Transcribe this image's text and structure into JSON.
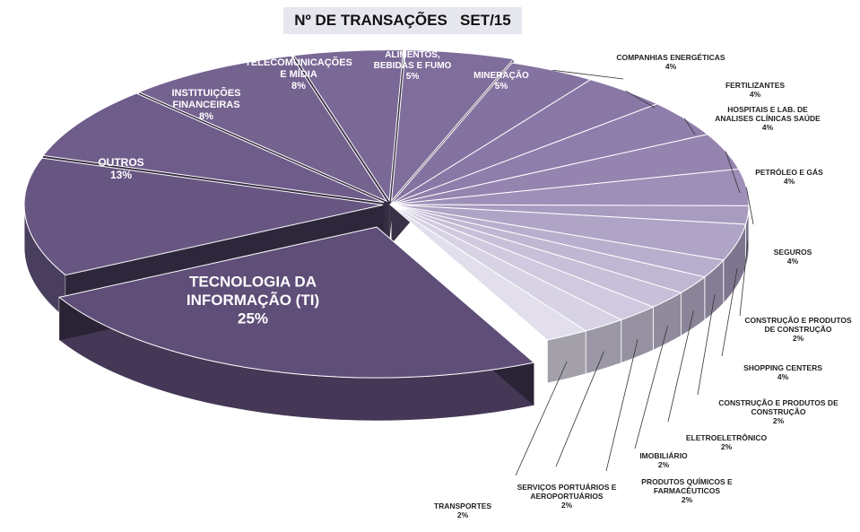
{
  "chart_data": {
    "type": "pie",
    "title": "Nº DE TRANSAÇÕES   SET/15",
    "slices": [
      {
        "label": "TECNOLOGIA DA INFORMAÇÃO (TI)",
        "lines": [
          "TECNOLOGIA DA",
          "INFORMAÇÃO (TI)"
        ],
        "value": 25,
        "pct": "25%",
        "color": "#5e4e78"
      },
      {
        "label": "OUTROS",
        "lines": [
          "OUTROS"
        ],
        "value": 13,
        "pct": "13%",
        "color": "#675682"
      },
      {
        "label": "INSTITUIÇÕES FINANCEIRAS",
        "lines": [
          "INSTITUIÇÕES",
          "FINANCEIRAS"
        ],
        "value": 8,
        "pct": "8%",
        "color": "#6e5c8a"
      },
      {
        "label": "TELECOMUNICAÇÕES E MÍDIA",
        "lines": [
          "TELECOMUNICAÇÕES",
          "E MÍDIA"
        ],
        "value": 8,
        "pct": "8%",
        "color": "#74628f"
      },
      {
        "label": "ALIMENTOS, BEBIDAS E FUMO",
        "lines": [
          "ALIMENTOS,",
          "BEBIDAS E FUMO"
        ],
        "value": 5,
        "pct": "5%",
        "color": "#7a6896"
      },
      {
        "label": "MINERAÇÃO",
        "lines": [
          "MINERAÇÃO"
        ],
        "value": 5,
        "pct": "5%",
        "color": "#7f6d9b"
      },
      {
        "label": "COMPANHIAS ENERGÉTICAS",
        "lines": [
          "COMPANHIAS ENERGÉTICAS"
        ],
        "value": 4,
        "pct": "4%",
        "color": "#8473a0"
      },
      {
        "label": "FERTILIZANTES",
        "lines": [
          "FERTILIZANTES"
        ],
        "value": 4,
        "pct": "4%",
        "color": "#8978a6"
      },
      {
        "label": "HOSPITAIS E LAB. DE ANALISES CLÍNICAS SAÚDE",
        "lines": [
          "HOSPITAIS E LAB. DE",
          "ANALISES CLÍNICAS SAÚDE"
        ],
        "value": 4,
        "pct": "4%",
        "color": "#8e7eab"
      },
      {
        "label": "PETRÓLEO E GÁS",
        "lines": [
          "PETRÓLEO E GÁS"
        ],
        "value": 4,
        "pct": "4%",
        "color": "#9584b0"
      },
      {
        "label": "SEGUROS",
        "lines": [
          "SEGUROS"
        ],
        "value": 4,
        "pct": "4%",
        "color": "#9d8fb8"
      },
      {
        "label": "CONSTRUÇÃO E PRODUTOS DE CONSTRUÇÃO",
        "lines": [
          "CONSTRUÇÃO E PRODUTOS",
          "DE CONSTRUÇÃO"
        ],
        "value": 2,
        "pct": "2%",
        "color": "#a79bbf"
      },
      {
        "label": "SHOPPING CENTERS",
        "lines": [
          "SHOPPING CENTERS"
        ],
        "value": 4,
        "pct": "4%",
        "color": "#afa4c6"
      },
      {
        "label": "CONSTRUÇÃO E PRODUTOS DE CONSTRUÇÃO",
        "lines": [
          "CONSTRUÇÃO E PRODUTOS DE",
          "CONSTRUÇÃO"
        ],
        "value": 2,
        "pct": "2%",
        "color": "#b8aecd"
      },
      {
        "label": "ELETROELETRÔNICO",
        "lines": [
          "ELETROELETRÔNICO"
        ],
        "value": 2,
        "pct": "2%",
        "color": "#c0b7d3"
      },
      {
        "label": "IMOBILIÁRIO",
        "lines": [
          "IMOBILIÁRIO"
        ],
        "value": 2,
        "pct": "2%",
        "color": "#c8c0d9"
      },
      {
        "label": "PRODUTOS QUÍMICOS E FARMACÊUTICOS",
        "lines": [
          "PRODUTOS QUÍMICOS E",
          "FARMACÊUTICOS"
        ],
        "value": 2,
        "pct": "2%",
        "color": "#d0c9df"
      },
      {
        "label": "SERVIÇOS PORTUÁRIOS E AEROPORTUÁRIOS",
        "lines": [
          "SERVIÇOS PORTUÁRIOS E",
          "AEROPORTUÁRIOS"
        ],
        "value": 2,
        "pct": "2%",
        "color": "#d8d2e5"
      },
      {
        "label": "TRANSPORTES",
        "lines": [
          "TRANSPORTES"
        ],
        "value": 2,
        "pct": "2%",
        "color": "#e2deec"
      }
    ],
    "legend": "none"
  }
}
